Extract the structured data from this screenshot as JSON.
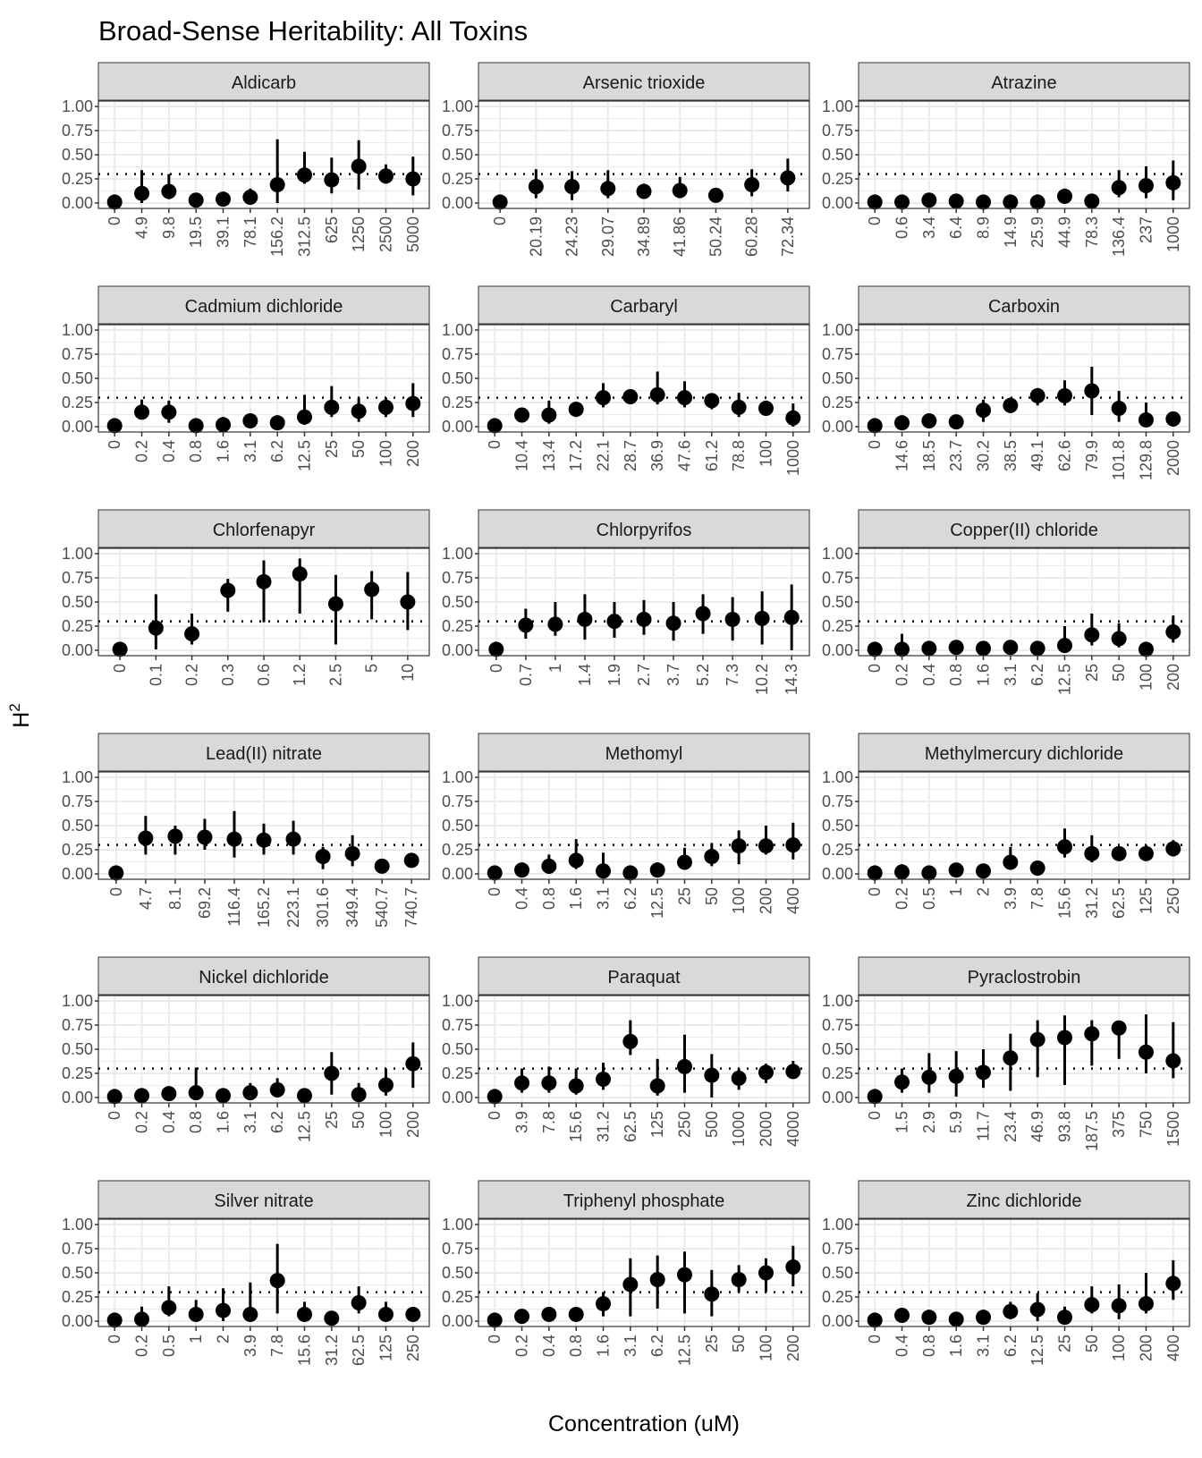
{
  "chart_data": {
    "type": "scatter",
    "title": "Broad-Sense Heritability: All Toxins",
    "xlabel": "Concentration (uM)",
    "ylabel": "H",
    "ylabel_superscript": "2",
    "ylim": [
      0,
      1
    ],
    "yticks": [
      "0.00",
      "0.25",
      "0.50",
      "0.75",
      "1.00"
    ],
    "reference_line": {
      "y": 0.3,
      "style": "dotted"
    },
    "grid": true,
    "error_bars": true,
    "colors": {
      "points": "#000000",
      "strip": "#d9d9d9",
      "grid": "#ebebeb",
      "border": "#333333"
    },
    "panels": [
      {
        "name": "Aldicarb",
        "x": [
          "0",
          "4.9",
          "9.8",
          "19.5",
          "39.1",
          "78.1",
          "156.2",
          "312.5",
          "625",
          "1250",
          "2500",
          "5000"
        ],
        "y": [
          0.01,
          0.1,
          0.12,
          0.03,
          0.04,
          0.06,
          0.19,
          0.29,
          0.24,
          0.38,
          0.28,
          0.25
        ],
        "lo": [
          0,
          0,
          0.04,
          0,
          0,
          0,
          0,
          0.2,
          0.1,
          0.14,
          0.2,
          0.08
        ],
        "hi": [
          0.05,
          0.34,
          0.3,
          0.08,
          0.1,
          0.15,
          0.66,
          0.53,
          0.47,
          0.65,
          0.4,
          0.48
        ]
      },
      {
        "name": "Arsenic trioxide",
        "x": [
          "0",
          "20.19",
          "24.23",
          "29.07",
          "34.89",
          "41.86",
          "50.24",
          "60.28",
          "72.34"
        ],
        "y": [
          0.01,
          0.17,
          0.17,
          0.15,
          0.12,
          0.13,
          0.08,
          0.19,
          0.26
        ],
        "lo": [
          0,
          0.05,
          0.03,
          0.05,
          0.05,
          0.05,
          0.02,
          0.07,
          0.12
        ],
        "hi": [
          0.02,
          0.35,
          0.33,
          0.34,
          0.2,
          0.27,
          0.15,
          0.35,
          0.46
        ]
      },
      {
        "name": "Atrazine",
        "x": [
          "0",
          "0.6",
          "3.4",
          "6.4",
          "8.9",
          "14.9",
          "25.9",
          "44.9",
          "78.3",
          "136.4",
          "237",
          "1000"
        ],
        "y": [
          0.01,
          0.01,
          0.03,
          0.02,
          0.01,
          0.01,
          0.01,
          0.07,
          0.02,
          0.16,
          0.18,
          0.21
        ],
        "lo": [
          0,
          0,
          0,
          0,
          0,
          0,
          0,
          0,
          0,
          0.06,
          0.05,
          0.03
        ],
        "hi": [
          0.04,
          0.05,
          0.08,
          0.06,
          0.04,
          0.04,
          0.04,
          0.15,
          0.05,
          0.34,
          0.38,
          0.44
        ]
      },
      {
        "name": "Cadmium dichloride",
        "x": [
          "0",
          "0.2",
          "0.4",
          "0.8",
          "1.6",
          "3.1",
          "6.2",
          "12.5",
          "25",
          "50",
          "100",
          "200"
        ],
        "y": [
          0.01,
          0.15,
          0.15,
          0.01,
          0.02,
          0.06,
          0.04,
          0.1,
          0.2,
          0.16,
          0.2,
          0.24
        ],
        "lo": [
          0,
          0.08,
          0.04,
          0,
          0,
          0,
          0,
          0.02,
          0.1,
          0.05,
          0.1,
          0.1
        ],
        "hi": [
          0.05,
          0.28,
          0.27,
          0.04,
          0.1,
          0.12,
          0.1,
          0.33,
          0.42,
          0.3,
          0.3,
          0.45
        ]
      },
      {
        "name": "Carbaryl",
        "x": [
          "0",
          "10.4",
          "13.4",
          "17.2",
          "22.1",
          "28.7",
          "36.9",
          "47.6",
          "61.2",
          "78.8",
          "100",
          "1000"
        ],
        "y": [
          0.01,
          0.12,
          0.12,
          0.18,
          0.3,
          0.31,
          0.33,
          0.3,
          0.27,
          0.2,
          0.19,
          0.09
        ],
        "lo": [
          0,
          0.05,
          0.03,
          0.1,
          0.2,
          0.25,
          0.23,
          0.2,
          0.18,
          0.1,
          0.12,
          0
        ],
        "hi": [
          0.04,
          0.18,
          0.27,
          0.24,
          0.45,
          0.38,
          0.57,
          0.47,
          0.33,
          0.35,
          0.27,
          0.24
        ]
      },
      {
        "name": "Carboxin",
        "x": [
          "0",
          "14.6",
          "18.5",
          "23.7",
          "30.2",
          "38.5",
          "49.1",
          "62.6",
          "79.9",
          "101.8",
          "129.8",
          "2000"
        ],
        "y": [
          0.01,
          0.04,
          0.06,
          0.05,
          0.17,
          0.22,
          0.32,
          0.32,
          0.37,
          0.19,
          0.07,
          0.08
        ],
        "lo": [
          0,
          0,
          0,
          0,
          0.05,
          0.14,
          0.22,
          0.22,
          0.12,
          0.05,
          0,
          0
        ],
        "hi": [
          0.04,
          0.1,
          0.1,
          0.12,
          0.28,
          0.3,
          0.4,
          0.48,
          0.62,
          0.37,
          0.25,
          0.12
        ]
      },
      {
        "name": "Chlorfenapyr",
        "x": [
          "0",
          "0.1",
          "0.2",
          "0.3",
          "0.6",
          "1.2",
          "2.5",
          "5",
          "10"
        ],
        "y": [
          0.01,
          0.23,
          0.17,
          0.62,
          0.71,
          0.79,
          0.48,
          0.63,
          0.5
        ],
        "lo": [
          0,
          0.01,
          0.06,
          0.4,
          0.29,
          0.38,
          0.06,
          0.32,
          0.21
        ],
        "hi": [
          0.03,
          0.58,
          0.38,
          0.74,
          0.93,
          0.95,
          0.78,
          0.82,
          0.81
        ]
      },
      {
        "name": "Chlorpyrifos",
        "x": [
          "0",
          "0.7",
          "1",
          "1.4",
          "1.9",
          "2.7",
          "3.7",
          "5.2",
          "7.3",
          "10.2",
          "14.3"
        ],
        "y": [
          0.01,
          0.26,
          0.27,
          0.32,
          0.3,
          0.32,
          0.28,
          0.38,
          0.32,
          0.33,
          0.34
        ],
        "lo": [
          0,
          0.12,
          0.15,
          0.11,
          0.13,
          0.16,
          0.1,
          0.17,
          0.1,
          0.06,
          0
        ],
        "hi": [
          0.04,
          0.43,
          0.5,
          0.58,
          0.5,
          0.52,
          0.5,
          0.58,
          0.55,
          0.61,
          0.68
        ]
      },
      {
        "name": "Copper(II) chloride",
        "x": [
          "0",
          "0.2",
          "0.4",
          "0.8",
          "1.6",
          "3.1",
          "6.2",
          "12.5",
          "25",
          "50",
          "100",
          "200"
        ],
        "y": [
          0.01,
          0.01,
          0.02,
          0.03,
          0.02,
          0.03,
          0.02,
          0.05,
          0.16,
          0.12,
          0.01,
          0.19
        ],
        "lo": [
          0,
          0,
          0,
          0,
          0,
          0,
          0,
          0,
          0.05,
          0.03,
          0,
          0.08
        ],
        "hi": [
          0.03,
          0.17,
          0.05,
          0.08,
          0.05,
          0.08,
          0.06,
          0.25,
          0.38,
          0.28,
          0.05,
          0.36
        ]
      },
      {
        "name": "Lead(II) nitrate",
        "x": [
          "0",
          "4.7",
          "8.1",
          "69.2",
          "116.4",
          "165.2",
          "223.1",
          "301.6",
          "349.4",
          "540.7",
          "740.7"
        ],
        "y": [
          0.01,
          0.37,
          0.39,
          0.38,
          0.36,
          0.35,
          0.36,
          0.18,
          0.21,
          0.08,
          0.14
        ],
        "lo": [
          0,
          0.2,
          0.2,
          0.25,
          0.17,
          0.2,
          0.2,
          0.05,
          0.08,
          0.02,
          0.08
        ],
        "hi": [
          0.03,
          0.6,
          0.5,
          0.57,
          0.65,
          0.52,
          0.55,
          0.28,
          0.4,
          0.15,
          0.2
        ]
      },
      {
        "name": "Methomyl",
        "x": [
          "0",
          "0.4",
          "0.8",
          "1.6",
          "3.1",
          "6.2",
          "12.5",
          "25",
          "50",
          "100",
          "200",
          "400"
        ],
        "y": [
          0.01,
          0.04,
          0.08,
          0.14,
          0.03,
          0.01,
          0.04,
          0.12,
          0.18,
          0.29,
          0.29,
          0.3
        ],
        "lo": [
          0,
          0,
          0,
          0.05,
          0,
          0,
          0,
          0.05,
          0.08,
          0.1,
          0.2,
          0.15
        ],
        "hi": [
          0.03,
          0.08,
          0.2,
          0.36,
          0.22,
          0.04,
          0.12,
          0.27,
          0.32,
          0.45,
          0.5,
          0.53
        ]
      },
      {
        "name": "Methylmercury dichloride",
        "x": [
          "0",
          "0.2",
          "0.5",
          "1",
          "2",
          "3.9",
          "7.8",
          "15.6",
          "31.2",
          "62.5",
          "125",
          "250"
        ],
        "y": [
          0.01,
          0.02,
          0.01,
          0.04,
          0.03,
          0.12,
          0.06,
          0.28,
          0.21,
          0.21,
          0.21,
          0.26
        ],
        "lo": [
          0,
          0,
          0,
          0,
          0,
          0.05,
          0,
          0.17,
          0.12,
          0.14,
          0.14,
          0.18
        ],
        "hi": [
          0.04,
          0.1,
          0.04,
          0.08,
          0.06,
          0.28,
          0.1,
          0.47,
          0.4,
          0.27,
          0.3,
          0.35
        ]
      },
      {
        "name": "Nickel dichloride",
        "x": [
          "0",
          "0.2",
          "0.4",
          "0.8",
          "1.6",
          "3.1",
          "6.2",
          "12.5",
          "25",
          "50",
          "100",
          "200"
        ],
        "y": [
          0.01,
          0.02,
          0.04,
          0.05,
          0.02,
          0.05,
          0.08,
          0.02,
          0.25,
          0.03,
          0.13,
          0.35
        ],
        "lo": [
          0,
          0,
          0,
          0,
          0,
          0,
          0,
          0,
          0.03,
          0,
          0.02,
          0.1
        ],
        "hi": [
          0.04,
          0.05,
          0.08,
          0.31,
          0.05,
          0.15,
          0.2,
          0.05,
          0.47,
          0.15,
          0.3,
          0.57
        ]
      },
      {
        "name": "Paraquat",
        "x": [
          "0",
          "3.9",
          "7.8",
          "15.6",
          "31.2",
          "62.5",
          "125",
          "250",
          "500",
          "1000",
          "2000",
          "4000"
        ],
        "y": [
          0.01,
          0.15,
          0.15,
          0.12,
          0.19,
          0.58,
          0.12,
          0.32,
          0.23,
          0.2,
          0.26,
          0.27
        ],
        "lo": [
          0,
          0.05,
          0.05,
          0.03,
          0.08,
          0.44,
          0.02,
          0.05,
          0,
          0.08,
          0.15,
          0.2
        ],
        "hi": [
          0.04,
          0.3,
          0.32,
          0.3,
          0.36,
          0.8,
          0.4,
          0.65,
          0.45,
          0.3,
          0.35,
          0.38
        ]
      },
      {
        "name": "Pyraclostrobin",
        "x": [
          "0",
          "1.5",
          "2.9",
          "5.9",
          "11.7",
          "23.4",
          "46.9",
          "93.8",
          "187.5",
          "375",
          "750",
          "1500"
        ],
        "y": [
          0.01,
          0.16,
          0.21,
          0.22,
          0.26,
          0.41,
          0.6,
          0.62,
          0.66,
          0.72,
          0.47,
          0.38
        ],
        "lo": [
          0,
          0.05,
          0.05,
          0.01,
          0.1,
          0.07,
          0.21,
          0.13,
          0.33,
          0.4,
          0.25,
          0.2
        ],
        "hi": [
          0.04,
          0.3,
          0.46,
          0.48,
          0.5,
          0.66,
          0.8,
          0.85,
          0.8,
          0.78,
          0.86,
          0.78
        ]
      },
      {
        "name": "Silver nitrate",
        "x": [
          "0",
          "0.2",
          "0.5",
          "1",
          "2",
          "3.9",
          "7.8",
          "15.6",
          "31.2",
          "62.5",
          "125",
          "250"
        ],
        "y": [
          0.01,
          0.02,
          0.14,
          0.07,
          0.11,
          0.07,
          0.42,
          0.07,
          0.03,
          0.19,
          0.07,
          0.07
        ],
        "lo": [
          0,
          0,
          0.05,
          0,
          0,
          0,
          0.08,
          0,
          0,
          0.08,
          0,
          0.02
        ],
        "hi": [
          0.03,
          0.15,
          0.36,
          0.22,
          0.34,
          0.4,
          0.8,
          0.2,
          0.08,
          0.36,
          0.2,
          0.1
        ]
      },
      {
        "name": "Triphenyl phosphate",
        "x": [
          "0",
          "0.2",
          "0.4",
          "0.8",
          "1.6",
          "3.1",
          "6.2",
          "12.5",
          "25",
          "50",
          "100",
          "200"
        ],
        "y": [
          0.01,
          0.05,
          0.07,
          0.07,
          0.18,
          0.38,
          0.43,
          0.48,
          0.28,
          0.43,
          0.5,
          0.56
        ],
        "lo": [
          0,
          0,
          0,
          0,
          0.05,
          0.05,
          0.13,
          0.08,
          0.05,
          0.3,
          0.3,
          0.36
        ],
        "hi": [
          0.03,
          0.1,
          0.13,
          0.12,
          0.3,
          0.65,
          0.68,
          0.72,
          0.53,
          0.58,
          0.65,
          0.78
        ]
      },
      {
        "name": "Zinc dichloride",
        "x": [
          "0",
          "0.4",
          "0.8",
          "1.6",
          "3.1",
          "6.2",
          "12.5",
          "25",
          "50",
          "100",
          "200",
          "400"
        ],
        "y": [
          0.01,
          0.06,
          0.04,
          0.02,
          0.04,
          0.1,
          0.12,
          0.04,
          0.17,
          0.16,
          0.18,
          0.39
        ],
        "lo": [
          0,
          0,
          0,
          0,
          0,
          0.02,
          0,
          0,
          0.08,
          0.02,
          0.08,
          0.22
        ],
        "hi": [
          0.03,
          0.12,
          0.08,
          0.05,
          0.1,
          0.2,
          0.29,
          0.15,
          0.36,
          0.38,
          0.5,
          0.63
        ]
      }
    ]
  }
}
